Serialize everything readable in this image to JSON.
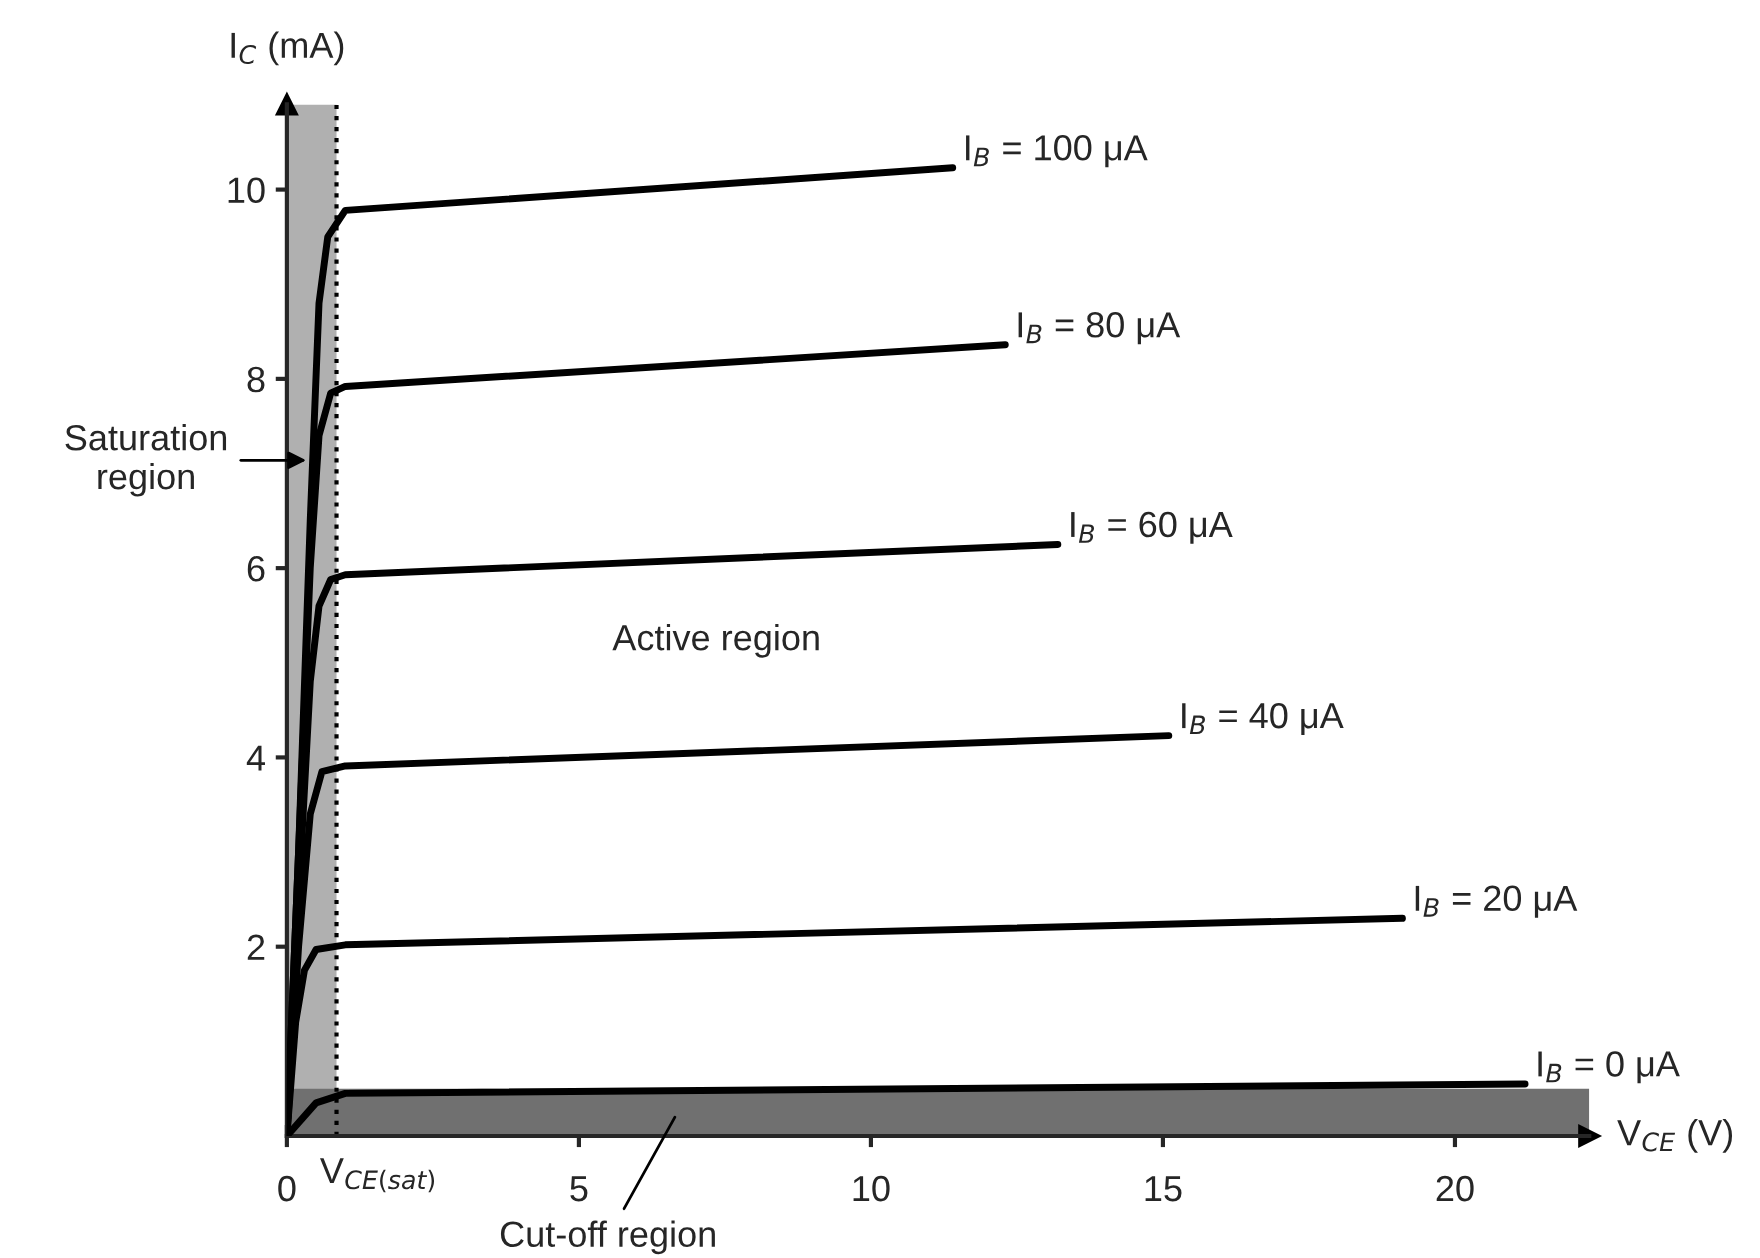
{
  "chart_data": {
    "type": "line",
    "xlabel": "V$_{CE}$ (V)",
    "ylabel": "I$_{C}$ (mA)",
    "xlim": [
      0,
      22.3
    ],
    "ylim": [
      0,
      10.9
    ],
    "xticks": [
      0,
      5,
      10,
      15,
      20
    ],
    "yticks": [
      2,
      4,
      6,
      8,
      10
    ],
    "grid": false,
    "legend": false,
    "marker": "none",
    "line_style": "solid",
    "series": [
      {
        "name": "I$_{B}$ = 100 μA",
        "color": "#000000",
        "x": [
          0,
          0.2,
          0.4,
          0.55,
          0.7,
          1.0,
          11.4
        ],
        "values": [
          0,
          3,
          6.5,
          8.8,
          9.5,
          9.78,
          10.23
        ]
      },
      {
        "name": "I$_{B}$ = 80 μA",
        "color": "#000000",
        "x": [
          0,
          0.2,
          0.4,
          0.55,
          0.75,
          1.0,
          12.3
        ],
        "values": [
          0,
          3,
          6,
          7.4,
          7.85,
          7.92,
          8.36
        ]
      },
      {
        "name": "I$_{B}$ = 60 μA",
        "color": "#000000",
        "x": [
          0,
          0.2,
          0.4,
          0.55,
          0.75,
          1.0,
          13.2
        ],
        "values": [
          0,
          2.5,
          4.8,
          5.6,
          5.88,
          5.93,
          6.25
        ]
      },
      {
        "name": "I$_{B}$ = 40 μA",
        "color": "#000000",
        "x": [
          0,
          0.2,
          0.4,
          0.6,
          1.0,
          15.1
        ],
        "values": [
          0,
          2,
          3.4,
          3.85,
          3.91,
          4.23
        ]
      },
      {
        "name": "I$_{B}$ = 20 μA",
        "color": "#000000",
        "x": [
          0,
          0.15,
          0.3,
          0.5,
          1.0,
          19.1
        ],
        "values": [
          0,
          1.2,
          1.75,
          1.97,
          2.02,
          2.3
        ]
      },
      {
        "name": "I$_{B}$ = 0 μA",
        "color": "#000000",
        "x": [
          0,
          0.5,
          1.0,
          21.2
        ],
        "values": [
          0,
          0.35,
          0.45,
          0.55
        ]
      }
    ],
    "ref_lines": [
      {
        "axis": "x",
        "value": 0.85,
        "label": "V$_{CE(sat)}$",
        "line_style": "dotted",
        "color": "#000000"
      }
    ],
    "bands": [
      {
        "axis": "x",
        "from": 0,
        "to": 0.85,
        "label": "Saturation region",
        "color": "#b0b0b0"
      },
      {
        "axis": "y",
        "from": 0,
        "to": 0.5,
        "label": "Cut-off region",
        "color": "#707070"
      }
    ],
    "annotations": [
      "Active region"
    ]
  }
}
